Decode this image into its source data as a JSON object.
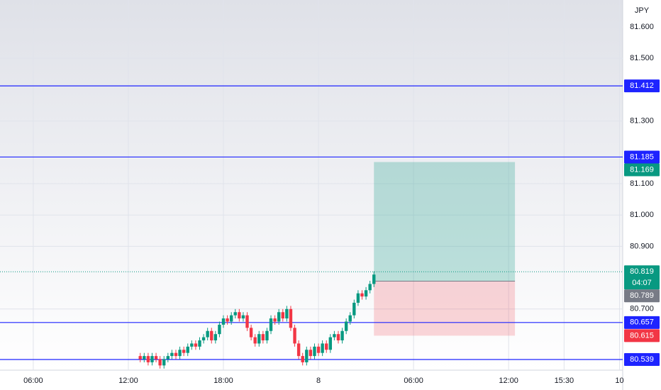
{
  "chart_data": {
    "type": "candlestick",
    "currency": "JPY",
    "xlim": [
      3.9,
      43.2
    ],
    "xticks": [
      {
        "value": 6,
        "label": "06:00"
      },
      {
        "value": 12,
        "label": "12:00"
      },
      {
        "value": 18,
        "label": "18:00"
      },
      {
        "value": 24,
        "label": "8"
      },
      {
        "value": 30,
        "label": "06:00"
      },
      {
        "value": 36,
        "label": "12:00"
      },
      {
        "value": 39.5,
        "label": "15:30"
      },
      {
        "value": 43,
        "label": "10"
      }
    ],
    "ylim": [
      80.505,
      81.686
    ],
    "yticks": [
      {
        "value": 81.6,
        "label": "81.600"
      },
      {
        "value": 81.5,
        "label": "81.500"
      },
      {
        "value": 81.3,
        "label": "81.300"
      },
      {
        "value": 81.1,
        "label": "81.100"
      },
      {
        "value": 81.0,
        "label": "81.000"
      },
      {
        "value": 80.9,
        "label": "80.900"
      },
      {
        "value": 80.7,
        "label": "80.700"
      }
    ],
    "grid": true,
    "up_color": "#089981",
    "down_color": "#f23645",
    "x": [
      12.75,
      13,
      13.25,
      13.5,
      13.75,
      14,
      14.25,
      14.5,
      14.75,
      15,
      15.25,
      15.5,
      15.75,
      16,
      16.25,
      16.5,
      16.75,
      17,
      17.25,
      17.5,
      17.75,
      18,
      18.25,
      18.5,
      18.75,
      19,
      19.25,
      19.5,
      19.75,
      20,
      20.25,
      20.5,
      20.75,
      21,
      21.25,
      21.5,
      21.75,
      22,
      22.25,
      22.5,
      22.75,
      23,
      23.25,
      23.5,
      23.75,
      24,
      24.25,
      24.5,
      24.75,
      25,
      25.25,
      25.5,
      25.75,
      26,
      26.25,
      26.5,
      26.75,
      27,
      27.25,
      27.5
    ],
    "open": [
      80.55,
      80.54,
      80.55,
      80.53,
      80.55,
      80.54,
      80.52,
      80.54,
      80.55,
      80.56,
      80.55,
      80.57,
      80.56,
      80.58,
      80.59,
      80.58,
      80.6,
      80.61,
      80.63,
      80.6,
      80.62,
      80.65,
      80.67,
      80.66,
      80.68,
      80.69,
      80.67,
      80.68,
      80.64,
      80.61,
      80.59,
      80.62,
      80.6,
      80.63,
      80.67,
      80.66,
      80.69,
      80.67,
      80.7,
      80.64,
      80.59,
      80.55,
      80.53,
      80.57,
      80.55,
      80.58,
      80.56,
      80.59,
      80.57,
      80.61,
      80.62,
      80.6,
      80.63,
      80.66,
      80.68,
      80.72,
      80.75,
      80.74,
      80.76,
      80.78
    ],
    "high": [
      80.56,
      80.56,
      80.56,
      80.56,
      80.56,
      80.55,
      80.55,
      80.56,
      80.57,
      80.57,
      80.58,
      80.58,
      80.59,
      80.6,
      80.6,
      80.61,
      80.62,
      80.64,
      80.64,
      80.63,
      80.66,
      80.68,
      80.68,
      80.69,
      80.7,
      80.7,
      80.69,
      80.69,
      80.65,
      80.62,
      80.63,
      80.63,
      80.64,
      80.68,
      80.68,
      80.7,
      80.7,
      80.71,
      80.71,
      80.65,
      80.6,
      80.56,
      80.58,
      80.58,
      80.59,
      80.59,
      80.6,
      80.6,
      80.62,
      80.63,
      80.63,
      80.64,
      80.67,
      80.69,
      80.73,
      80.76,
      80.76,
      80.77,
      80.79,
      80.82
    ],
    "low": [
      80.53,
      80.53,
      80.52,
      80.52,
      80.53,
      80.51,
      80.51,
      80.53,
      80.54,
      80.54,
      80.54,
      80.55,
      80.55,
      80.57,
      80.57,
      80.57,
      80.59,
      80.6,
      80.59,
      80.59,
      80.61,
      80.64,
      80.65,
      80.65,
      80.67,
      80.66,
      80.66,
      80.63,
      80.6,
      80.58,
      80.58,
      80.59,
      80.59,
      80.62,
      80.65,
      80.65,
      80.66,
      80.66,
      80.63,
      80.58,
      80.54,
      80.52,
      80.52,
      80.54,
      80.54,
      80.55,
      80.55,
      80.56,
      80.56,
      80.6,
      80.59,
      80.59,
      80.62,
      80.65,
      80.67,
      80.71,
      80.73,
      80.73,
      80.75,
      80.77
    ],
    "close": [
      80.54,
      80.55,
      80.53,
      80.55,
      80.54,
      80.52,
      80.54,
      80.55,
      80.56,
      80.55,
      80.57,
      80.56,
      80.58,
      80.59,
      80.58,
      80.6,
      80.61,
      80.63,
      80.6,
      80.62,
      80.65,
      80.67,
      80.66,
      80.68,
      80.69,
      80.67,
      80.68,
      80.64,
      80.61,
      80.59,
      80.62,
      80.6,
      80.63,
      80.67,
      80.66,
      80.69,
      80.67,
      80.7,
      80.64,
      80.59,
      80.55,
      80.53,
      80.57,
      80.55,
      80.58,
      80.56,
      80.59,
      80.57,
      80.61,
      80.62,
      80.6,
      80.63,
      80.66,
      80.68,
      80.72,
      80.75,
      80.74,
      80.76,
      80.78,
      80.81
    ],
    "levels": [
      {
        "value": 81.412,
        "color": "#1e24ff"
      },
      {
        "value": 81.185,
        "color": "#1e24ff"
      },
      {
        "value": 80.657,
        "color": "#1e24ff"
      },
      {
        "value": 80.539,
        "color": "#1e24ff"
      }
    ],
    "position": {
      "start": 27.5,
      "end": 36.4,
      "entry": 80.789,
      "target": 81.169,
      "stop": 80.615,
      "target_color": "#089981",
      "entry_color": "#787b86",
      "stop_color": "#f23645"
    },
    "last_price": 80.819,
    "countdown": "04:07"
  }
}
